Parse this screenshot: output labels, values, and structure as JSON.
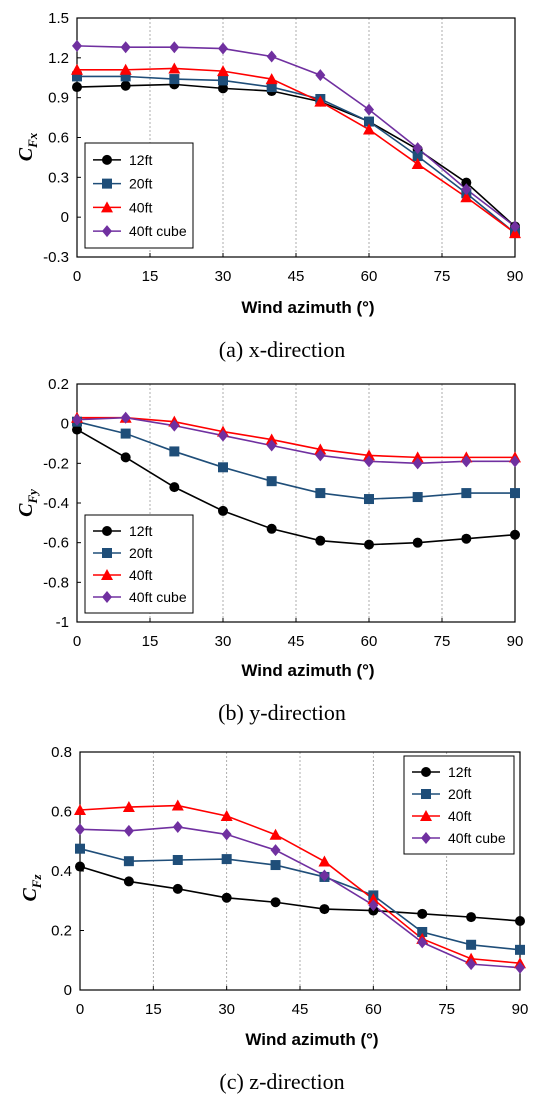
{
  "chart_data": [
    {
      "type": "line",
      "caption": "(a) x-direction",
      "xlabel": "Wind azimuth (°)",
      "ylabel_main": "C",
      "ylabel_sub": "Fx",
      "xlim": [
        0,
        90
      ],
      "ylim": [
        -0.3,
        1.5
      ],
      "xticks": [
        0,
        15,
        30,
        45,
        60,
        75,
        90
      ],
      "xtick_labels": [
        "0",
        "15",
        "30",
        "45",
        "60",
        "75",
        "90"
      ],
      "yticks": [
        -0.3,
        0,
        0.3,
        0.6,
        0.9,
        1.2,
        1.5
      ],
      "ytick_labels": [
        "-0.3",
        "0",
        "0.3",
        "0.6",
        "0.9",
        "1.2",
        "1.5"
      ],
      "grid": "vertical",
      "legend_position": "bottom-left",
      "x": [
        0,
        10,
        20,
        30,
        40,
        50,
        60,
        70,
        80,
        90
      ],
      "series": [
        {
          "name": "12ft",
          "marker": "circle",
          "color": "#000000",
          "values": [
            0.98,
            0.99,
            1.0,
            0.97,
            0.95,
            0.87,
            0.72,
            0.51,
            0.26,
            -0.07
          ]
        },
        {
          "name": "20ft",
          "marker": "square",
          "color": "#1f4e79",
          "values": [
            1.06,
            1.06,
            1.04,
            1.03,
            0.98,
            0.89,
            0.72,
            0.46,
            0.18,
            -0.12
          ]
        },
        {
          "name": "40ft",
          "marker": "triangle",
          "color": "#ff0000",
          "values": [
            1.11,
            1.11,
            1.12,
            1.1,
            1.04,
            0.87,
            0.66,
            0.4,
            0.15,
            -0.12
          ]
        },
        {
          "name": "40ft cube",
          "marker": "diamond",
          "color": "#7030a0",
          "values": [
            1.29,
            1.28,
            1.28,
            1.27,
            1.21,
            1.07,
            0.81,
            0.52,
            0.21,
            -0.07
          ]
        }
      ]
    },
    {
      "type": "line",
      "caption": "(b) y-direction",
      "xlabel": "Wind azimuth (°)",
      "ylabel_main": "C",
      "ylabel_sub": "Fy",
      "xlim": [
        0,
        90
      ],
      "ylim": [
        -1,
        0.2
      ],
      "xticks": [
        0,
        15,
        30,
        45,
        60,
        75,
        90
      ],
      "xtick_labels": [
        "0",
        "15",
        "30",
        "45",
        "60",
        "75",
        "90"
      ],
      "yticks": [
        -1,
        -0.8,
        -0.6,
        -0.4,
        -0.2,
        0,
        0.2
      ],
      "ytick_labels": [
        "-1",
        "-0.8",
        "-0.6",
        "-0.4",
        "-0.2",
        "0",
        "0.2"
      ],
      "grid": "vertical",
      "legend_position": "bottom-left",
      "x": [
        0,
        10,
        20,
        30,
        40,
        50,
        60,
        70,
        80,
        90
      ],
      "series": [
        {
          "name": "12ft",
          "marker": "circle",
          "color": "#000000",
          "values": [
            -0.03,
            -0.17,
            -0.32,
            -0.44,
            -0.53,
            -0.59,
            -0.61,
            -0.6,
            -0.58,
            -0.56
          ]
        },
        {
          "name": "20ft",
          "marker": "square",
          "color": "#1f4e79",
          "values": [
            0.01,
            -0.05,
            -0.14,
            -0.22,
            -0.29,
            -0.35,
            -0.38,
            -0.37,
            -0.35,
            -0.35
          ]
        },
        {
          "name": "40ft",
          "marker": "triangle",
          "color": "#ff0000",
          "values": [
            0.03,
            0.03,
            0.01,
            -0.04,
            -0.08,
            -0.13,
            -0.16,
            -0.17,
            -0.17,
            -0.17
          ]
        },
        {
          "name": "40ft cube",
          "marker": "diamond",
          "color": "#7030a0",
          "values": [
            0.02,
            0.03,
            -0.01,
            -0.06,
            -0.11,
            -0.16,
            -0.19,
            -0.2,
            -0.19,
            -0.19
          ]
        }
      ]
    },
    {
      "type": "line",
      "caption": "(c) z-direction",
      "xlabel": "Wind azimuth (°)",
      "ylabel_main": "C",
      "ylabel_sub": "Fz",
      "xlim": [
        0,
        90
      ],
      "ylim": [
        0,
        0.8
      ],
      "xticks": [
        0,
        15,
        30,
        45,
        60,
        75,
        90
      ],
      "xtick_labels": [
        "0",
        "15",
        "30",
        "45",
        "60",
        "75",
        "90"
      ],
      "yticks": [
        0,
        0.2,
        0.4,
        0.6,
        0.8
      ],
      "ytick_labels": [
        "0",
        "0.2",
        "0.4",
        "0.6",
        "0.8"
      ],
      "grid": "vertical",
      "legend_position": "top-right",
      "x": [
        0,
        10,
        20,
        30,
        40,
        50,
        60,
        70,
        80,
        90
      ],
      "series": [
        {
          "name": "12ft",
          "marker": "circle",
          "color": "#000000",
          "values": [
            0.415,
            0.365,
            0.34,
            0.31,
            0.295,
            0.272,
            0.267,
            0.256,
            0.245,
            0.232
          ]
        },
        {
          "name": "20ft",
          "marker": "square",
          "color": "#1f4e79",
          "values": [
            0.475,
            0.433,
            0.437,
            0.44,
            0.42,
            0.38,
            0.318,
            0.195,
            0.152,
            0.135
          ]
        },
        {
          "name": "40ft",
          "marker": "triangle",
          "color": "#ff0000",
          "values": [
            0.605,
            0.615,
            0.62,
            0.585,
            0.522,
            0.432,
            0.305,
            0.172,
            0.105,
            0.09
          ]
        },
        {
          "name": "40ft cube",
          "marker": "diamond",
          "color": "#7030a0",
          "values": [
            0.54,
            0.535,
            0.548,
            0.523,
            0.47,
            0.385,
            0.285,
            0.16,
            0.087,
            0.075
          ]
        }
      ]
    }
  ]
}
